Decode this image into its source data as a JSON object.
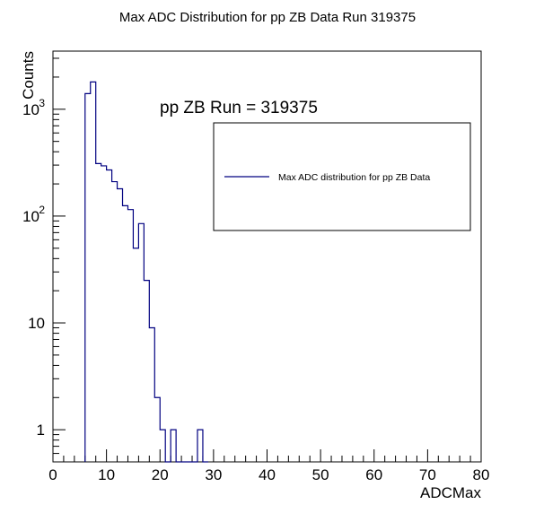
{
  "chart_data": {
    "type": "histogram",
    "title": "Max ADC Distribution for pp ZB Data Run 319375",
    "xlabel": "ADCMax",
    "ylabel": "Counts",
    "xlim": [
      0,
      80
    ],
    "ylim": [
      0.5,
      3500
    ],
    "yscale": "log",
    "grid": false,
    "bin_width": 1,
    "annotation": "pp ZB Run = 319375",
    "legend": {
      "position": "upper-right",
      "entries": [
        {
          "label": "Max ADC distribution for pp ZB Data",
          "color": "#000080"
        }
      ]
    },
    "x_ticks": [
      0,
      10,
      20,
      30,
      40,
      50,
      60,
      70,
      80
    ],
    "y_ticks": [
      {
        "value": 1,
        "label": "1"
      },
      {
        "value": 10,
        "label": "10"
      },
      {
        "value": 100,
        "label": "10",
        "exp": "2"
      },
      {
        "value": 1000,
        "label": "10",
        "exp": "3"
      }
    ],
    "series": [
      {
        "name": "Max ADC distribution for pp ZB Data",
        "color": "#000080",
        "bins": [
          {
            "x0": 6,
            "y": 1400
          },
          {
            "x0": 7,
            "y": 1800
          },
          {
            "x0": 8,
            "y": 310
          },
          {
            "x0": 9,
            "y": 295
          },
          {
            "x0": 10,
            "y": 270
          },
          {
            "x0": 11,
            "y": 210
          },
          {
            "x0": 12,
            "y": 180
          },
          {
            "x0": 13,
            "y": 125
          },
          {
            "x0": 14,
            "y": 115
          },
          {
            "x0": 15,
            "y": 50
          },
          {
            "x0": 16,
            "y": 85
          },
          {
            "x0": 17,
            "y": 25
          },
          {
            "x0": 18,
            "y": 9
          },
          {
            "x0": 19,
            "y": 2
          },
          {
            "x0": 20,
            "y": 1
          },
          {
            "x0": 21,
            "y": 0
          },
          {
            "x0": 22,
            "y": 1
          },
          {
            "x0": 23,
            "y": 0
          },
          {
            "x0": 24,
            "y": 0
          },
          {
            "x0": 25,
            "y": 0
          },
          {
            "x0": 26,
            "y": 0
          },
          {
            "x0": 27,
            "y": 1
          },
          {
            "x0": 28,
            "y": 0
          }
        ]
      }
    ]
  }
}
